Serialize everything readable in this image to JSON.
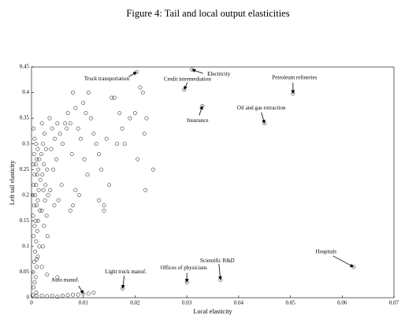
{
  "chart_data": {
    "type": "scatter",
    "title": "Figure 4: Tail and local output elasticities",
    "x_label": "Local elasticity",
    "y_label": "Left tail elasticity",
    "xlim": [
      0,
      0.07
    ],
    "ylim": [
      0,
      0.45
    ],
    "xticks": [
      0,
      0.01,
      0.02,
      0.03,
      0.04,
      0.05,
      0.06,
      0.07
    ],
    "yticks": [
      0,
      0.05,
      0.1,
      0.15,
      0.2,
      0.25,
      0.3,
      0.35,
      0.4,
      0.45
    ],
    "color": "#000000",
    "x": [
      0.0004,
      0.0006,
      0.0009,
      0.0012,
      0.0005,
      0.001,
      0.0015,
      0.0003,
      0.0008,
      0.0013,
      0.0006,
      0.0011,
      0.0017,
      0.0004,
      0.0009,
      0.0014,
      0.0002,
      0.0007,
      0.0012,
      0.0005,
      0.001,
      0.0016,
      0.0003,
      0.0008,
      0.0013,
      0.0006,
      0.0011,
      0.0004,
      0.0009,
      0.0015,
      0.0007,
      0.0012,
      0.0005,
      0.001,
      0.0003,
      0.0008,
      0.0006,
      0.0004,
      0.0009,
      0.0002,
      0.002,
      0.0025,
      0.0022,
      0.0028,
      0.0019,
      0.0024,
      0.003,
      0.0021,
      0.0027,
      0.0023,
      0.0032,
      0.0026,
      0.002,
      0.0029,
      0.0024,
      0.0031,
      0.0022,
      0.0035,
      0.004,
      0.0045,
      0.0038,
      0.005,
      0.0055,
      0.0048,
      0.0042,
      0.006,
      0.0065,
      0.0058,
      0.0036,
      0.0052,
      0.0044,
      0.007,
      0.0075,
      0.0068,
      0.008,
      0.0085,
      0.009,
      0.0078,
      0.0095,
      0.01,
      0.0105,
      0.011,
      0.0115,
      0.012,
      0.0125,
      0.013,
      0.0135,
      0.0085,
      0.008,
      0.0075,
      0.0092,
      0.0102,
      0.0108,
      0.014,
      0.0145,
      0.015,
      0.0155,
      0.016,
      0.0165,
      0.017,
      0.0175,
      0.018,
      0.019,
      0.02,
      0.0205,
      0.021,
      0.0215,
      0.0218,
      0.0222,
      0.022,
      0.0235,
      0.014,
      0.013,
      0.001,
      0.002,
      0.003,
      0.004,
      0.005,
      0.006,
      0.007,
      0.008,
      0.009,
      0.011,
      0.012,
      0.003,
      0.005,
      0.002,
      0.001
    ],
    "y": [
      0.33,
      0.31,
      0.3,
      0.29,
      0.28,
      0.27,
      0.27,
      0.26,
      0.26,
      0.25,
      0.24,
      0.24,
      0.23,
      0.22,
      0.22,
      0.21,
      0.2,
      0.2,
      0.19,
      0.18,
      0.18,
      0.17,
      0.16,
      0.15,
      0.15,
      0.14,
      0.13,
      0.12,
      0.11,
      0.1,
      0.09,
      0.08,
      0.07,
      0.06,
      0.05,
      0.04,
      0.03,
      0.02,
      0.01,
      0.005,
      0.34,
      0.32,
      0.3,
      0.29,
      0.28,
      0.26,
      0.25,
      0.24,
      0.22,
      0.21,
      0.2,
      0.19,
      0.17,
      0.16,
      0.14,
      0.12,
      0.1,
      0.35,
      0.33,
      0.31,
      0.29,
      0.34,
      0.32,
      0.27,
      0.25,
      0.3,
      0.34,
      0.22,
      0.21,
      0.19,
      0.18,
      0.36,
      0.34,
      0.33,
      0.4,
      0.37,
      0.33,
      0.28,
      0.31,
      0.38,
      0.36,
      0.4,
      0.35,
      0.32,
      0.3,
      0.28,
      0.25,
      0.21,
      0.18,
      0.17,
      0.2,
      0.27,
      0.24,
      0.18,
      0.31,
      0.22,
      0.39,
      0.39,
      0.3,
      0.36,
      0.33,
      0.3,
      0.35,
      0.36,
      0.27,
      0.41,
      0.4,
      0.32,
      0.35,
      0.21,
      0.25,
      0.17,
      0.19,
      0.004,
      0.004,
      0.003,
      0.004,
      0.002,
      0.004,
      0.005,
      0.006,
      0.006,
      0.008,
      0.01,
      0.045,
      0.04,
      0.06,
      0.075
    ],
    "annotations": [
      {
        "text": "Truck transportation",
        "x": 0.0203,
        "y": 0.44
      },
      {
        "text": "Electricity",
        "x": 0.031,
        "y": 0.445
      },
      {
        "text": "Credit intermediation",
        "x": 0.0295,
        "y": 0.406
      },
      {
        "text": "Petroleum refineries",
        "x": 0.0505,
        "y": 0.398
      },
      {
        "text": "Insurance",
        "x": 0.033,
        "y": 0.374
      },
      {
        "text": "Oil and gas extraction",
        "x": 0.045,
        "y": 0.34
      },
      {
        "text": "Hospitals",
        "x": 0.0622,
        "y": 0.06
      },
      {
        "text": "Scientific R&D",
        "x": 0.0365,
        "y": 0.035
      },
      {
        "text": "Offices of physicians",
        "x": 0.03,
        "y": 0.03
      },
      {
        "text": "Light truck manuf.",
        "x": 0.0176,
        "y": 0.018
      },
      {
        "text": "Auto manuf.",
        "x": 0.01,
        "y": 0.008
      }
    ]
  }
}
